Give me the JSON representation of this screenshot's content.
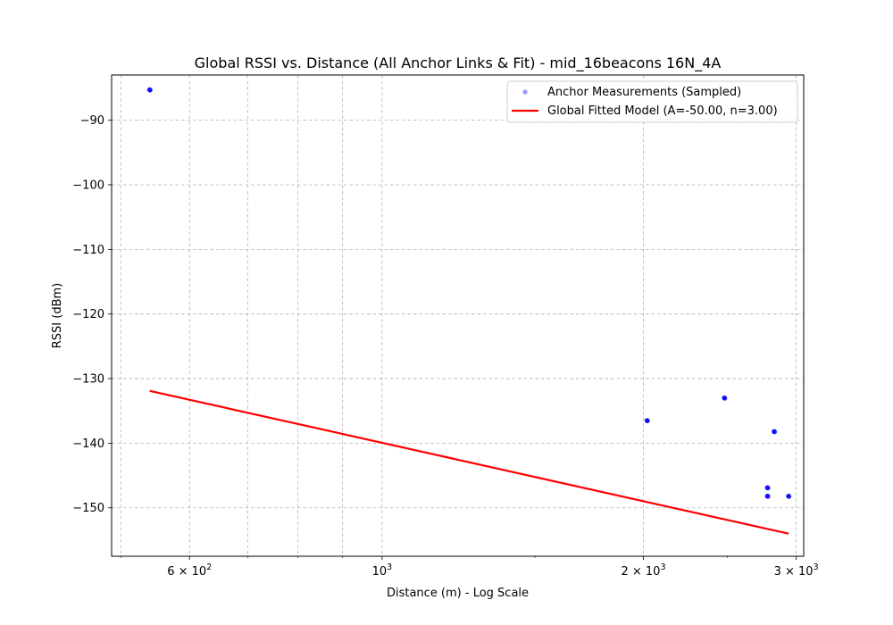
{
  "chart_data": {
    "type": "scatter",
    "title": "Global RSSI vs. Distance (All Anchor Links & Fit) - mid_16beacons 16N_4A",
    "xlabel": "Distance (m) - Log Scale",
    "ylabel": "RSSI (dBm)",
    "xscale": "log",
    "xlim": [
      488,
      3060
    ],
    "ylim": [
      -157.5,
      -83
    ],
    "x_major_ticks": [
      {
        "value": 600,
        "base": "6 × 10",
        "exp": "2"
      },
      {
        "value": 1000,
        "base": "10",
        "exp": "3"
      },
      {
        "value": 2000,
        "base": "2 × 10",
        "exp": "3"
      },
      {
        "value": 3000,
        "base": "3 × 10",
        "exp": "3"
      }
    ],
    "x_minor_gridlines": [
      500,
      700,
      800,
      900
    ],
    "y_ticks": [
      {
        "value": -90,
        "label": "−90"
      },
      {
        "value": -100,
        "label": "−100"
      },
      {
        "value": -110,
        "label": "−110"
      },
      {
        "value": -120,
        "label": "−120"
      },
      {
        "value": -130,
        "label": "−130"
      },
      {
        "value": -140,
        "label": "−140"
      },
      {
        "value": -150,
        "label": "−150"
      }
    ],
    "grid": true,
    "legend_position": "top-right",
    "series": [
      {
        "name": "Anchor Measurements (Sampled)",
        "kind": "scatter",
        "color": "#0000ff",
        "points": [
          {
            "x": 540,
            "y": -85.3
          },
          {
            "x": 2020,
            "y": -136.5
          },
          {
            "x": 2480,
            "y": -133.0
          },
          {
            "x": 2830,
            "y": -138.2
          },
          {
            "x": 2780,
            "y": -146.9
          },
          {
            "x": 2780,
            "y": -148.2
          },
          {
            "x": 2940,
            "y": -148.2
          }
        ]
      },
      {
        "name": "Global Fitted Model (A=-50.00, n=3.00)",
        "kind": "line",
        "color": "#ff0000",
        "points": [
          {
            "x": 540,
            "y": -131.9
          },
          {
            "x": 2940,
            "y": -154.0
          }
        ]
      }
    ]
  }
}
